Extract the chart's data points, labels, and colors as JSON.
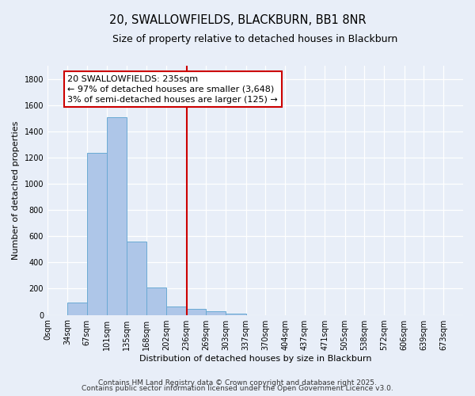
{
  "title": "20, SWALLOWFIELDS, BLACKBURN, BB1 8NR",
  "subtitle": "Size of property relative to detached houses in Blackburn",
  "xlabel": "Distribution of detached houses by size in Blackburn",
  "ylabel": "Number of detached properties",
  "bar_values": [
    0,
    95,
    1235,
    1510,
    560,
    210,
    65,
    45,
    30,
    10,
    0,
    0,
    0,
    0,
    0,
    0,
    0,
    0,
    0,
    0
  ],
  "bar_left_edges": [
    0,
    34,
    67,
    101,
    135,
    168,
    202,
    236,
    269,
    303,
    337,
    370,
    404,
    437,
    471,
    505,
    538,
    572,
    606,
    639
  ],
  "bar_widths": [
    34,
    33,
    34,
    34,
    33,
    34,
    34,
    33,
    34,
    34,
    33,
    34,
    33,
    34,
    34,
    33,
    34,
    34,
    33,
    34
  ],
  "tick_labels": [
    "0sqm",
    "34sqm",
    "67sqm",
    "101sqm",
    "135sqm",
    "168sqm",
    "202sqm",
    "236sqm",
    "269sqm",
    "303sqm",
    "337sqm",
    "370sqm",
    "404sqm",
    "437sqm",
    "471sqm",
    "505sqm",
    "538sqm",
    "572sqm",
    "606sqm",
    "639sqm",
    "673sqm"
  ],
  "vline_x": 236,
  "bar_color": "#aec6e8",
  "bar_edge_color": "#6aaad4",
  "vline_color": "#cc0000",
  "ylim": [
    0,
    1900
  ],
  "yticks": [
    0,
    200,
    400,
    600,
    800,
    1000,
    1200,
    1400,
    1600,
    1800
  ],
  "xlim": [
    0,
    706
  ],
  "annotation_title": "20 SWALLOWFIELDS: 235sqm",
  "annotation_line1": "← 97% of detached houses are smaller (3,648)",
  "annotation_line2": "3% of semi-detached houses are larger (125) →",
  "annotation_box_color": "#ffffff",
  "annotation_box_edge": "#cc0000",
  "footer1": "Contains HM Land Registry data © Crown copyright and database right 2025.",
  "footer2": "Contains public sector information licensed under the Open Government Licence v3.0.",
  "bg_color": "#e8eef8",
  "plot_bg_color": "#e8eef8",
  "grid_color": "#ffffff",
  "title_fontsize": 10.5,
  "subtitle_fontsize": 9,
  "axis_label_fontsize": 8,
  "tick_fontsize": 7,
  "annotation_fontsize": 8,
  "footer_fontsize": 6.5
}
